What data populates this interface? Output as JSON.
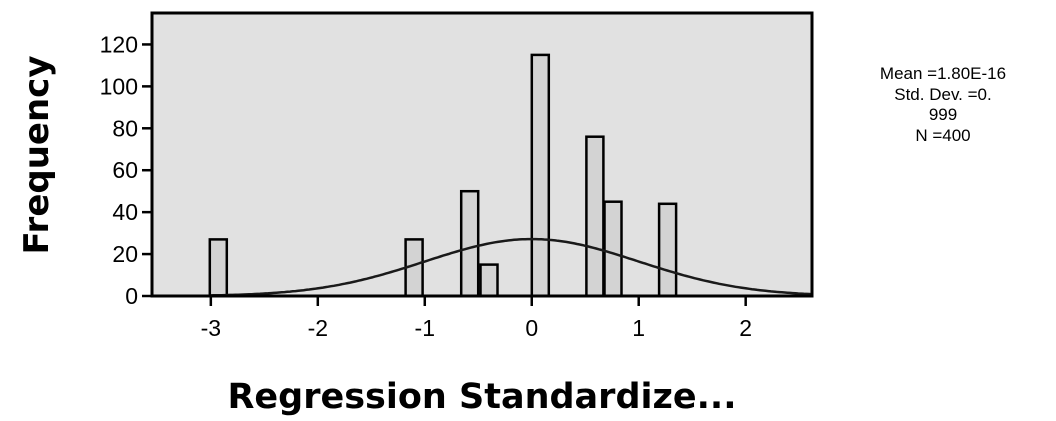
{
  "chart_data": {
    "type": "bar",
    "subtype": "histogram-with-normal-curve",
    "xlabel": "Regression Standardize...",
    "ylabel": "Frequency",
    "xlim": [
      -3.55,
      2.62
    ],
    "ylim": [
      0,
      135
    ],
    "x_ticks": [
      "-3",
      "-2",
      "-1",
      "0",
      "1",
      "2"
    ],
    "y_ticks": [
      "0",
      "20",
      "40",
      "60",
      "80",
      "100",
      "120"
    ],
    "grid": false,
    "background_color": "#e1e1e1",
    "bar_color": "#d3d3d3",
    "bars": [
      {
        "x": -2.93,
        "value": 27
      },
      {
        "x": -1.1,
        "value": 27
      },
      {
        "x": -0.58,
        "value": 50
      },
      {
        "x": -0.4,
        "value": 15
      },
      {
        "x": 0.08,
        "value": 115
      },
      {
        "x": 0.59,
        "value": 76
      },
      {
        "x": 0.76,
        "value": 45
      },
      {
        "x": 1.27,
        "value": 44
      }
    ],
    "normal_curve": {
      "mean": 0.0,
      "std_dev": 0.999,
      "n": 400,
      "bin_width": 0.17
    },
    "stats_box": {
      "line1": "Mean =1.80E-16",
      "line2": "Std. Dev. =0.",
      "line3": "999",
      "line4": "N =400"
    }
  }
}
